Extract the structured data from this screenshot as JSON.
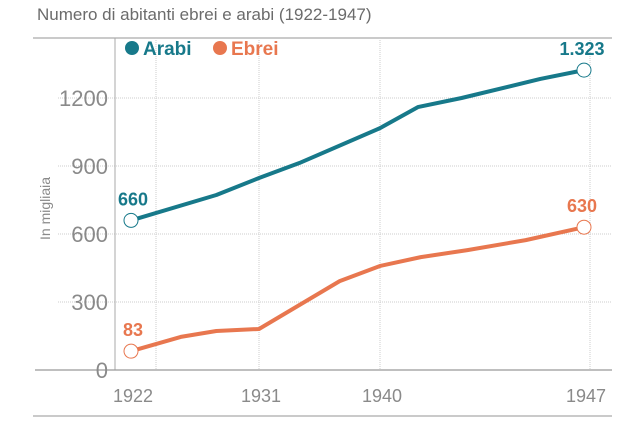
{
  "chart_data": {
    "type": "line",
    "title": "Numero di abitanti ebrei e arabi (1922-1947)",
    "xlabel": "",
    "ylabel": "In migliaia",
    "ylim": [
      0,
      1400
    ],
    "yticks": [
      0,
      300,
      600,
      900,
      1200
    ],
    "ytick_labels": [
      "0",
      "300",
      "600",
      "900",
      "1200"
    ],
    "xticks": [
      1922,
      1931,
      1940,
      1947
    ],
    "xtick_labels": [
      "1922",
      "1931",
      "1940",
      "1947"
    ],
    "grid": true,
    "legend_position": "top-left",
    "series": [
      {
        "name": "Arabi",
        "color": "#17798a",
        "x": [
          1922,
          1928,
          1931,
          1934,
          1940,
          1941.3,
          1942.8,
          1945.5,
          1947
        ],
        "values": [
          660,
          772,
          847,
          913,
          1067,
          1160,
          1200,
          1284,
          1323
        ],
        "start_label": "660",
        "end_label": "1.323"
      },
      {
        "name": "Ebrei",
        "color": "#e8774f",
        "x": [
          1922,
          1925.5,
          1928,
          1931,
          1937,
          1940,
          1941.4,
          1943,
          1945,
          1947
        ],
        "values": [
          83,
          146,
          172,
          181,
          392,
          459,
          498,
          529,
          573,
          630
        ],
        "start_label": "83",
        "end_label": "630"
      }
    ]
  }
}
